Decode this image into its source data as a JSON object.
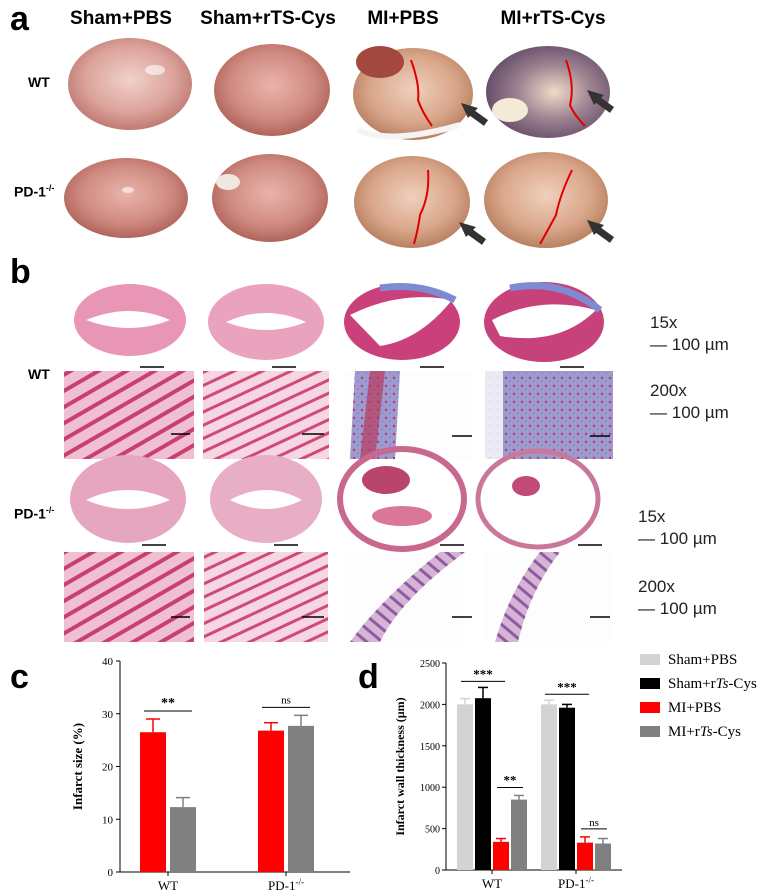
{
  "panel_labels": {
    "a": "a",
    "b": "b",
    "c": "c",
    "d": "d"
  },
  "groups": [
    "Sham+PBS",
    "Sham+rTS-Cys",
    "MI+PBS",
    "MI+rTS-Cys"
  ],
  "genotypes": [
    "WT",
    "PD-1-/-"
  ],
  "magnifications": {
    "low": "15x",
    "high": "200x",
    "scale_bar": "100 µm"
  },
  "colors": {
    "sham_pbs": "#d3d3d3",
    "sham_rts": "#000000",
    "mi_pbs": "#ff0000",
    "mi_rts": "#808080",
    "arrow": "#333333",
    "infarct_line": "#e00000"
  },
  "chart_data": [
    {
      "type": "bar",
      "panel": "c",
      "ylabel": "Infarct size (%)",
      "ylim": [
        0,
        40
      ],
      "yticks": [
        0,
        10,
        20,
        30,
        40
      ],
      "categories": [
        "WT",
        "PD-1-/-"
      ],
      "series": [
        {
          "name": "MI+PBS",
          "color": "#ff0000",
          "values": [
            26.5,
            26.8
          ],
          "errors": [
            2.5,
            1.5
          ]
        },
        {
          "name": "MI+rTS-Cys",
          "color": "#808080",
          "values": [
            12.3,
            27.7
          ],
          "errors": [
            1.8,
            2.0
          ]
        }
      ],
      "annotations": [
        {
          "category": "WT",
          "text": "**"
        },
        {
          "category": "PD-1-/-",
          "text": "ns"
        }
      ],
      "grid": false
    },
    {
      "type": "bar",
      "panel": "d",
      "ylabel": "Infarct wall thickness (µm)",
      "ylim": [
        0,
        2500
      ],
      "yticks": [
        0,
        500,
        1000,
        1500,
        2000,
        2500
      ],
      "categories": [
        "WT",
        "PD-1-/-"
      ],
      "series": [
        {
          "name": "Sham+PBS",
          "color": "#d3d3d3",
          "values": [
            2000,
            2000
          ],
          "errors": [
            70,
            50
          ]
        },
        {
          "name": "Sham+rTs-Cys",
          "color": "#000000",
          "values": [
            2075,
            1960
          ],
          "errors": [
            130,
            40
          ]
        },
        {
          "name": "MI+PBS",
          "color": "#ff0000",
          "values": [
            340,
            330
          ],
          "errors": [
            40,
            70
          ]
        },
        {
          "name": "MI+rTs-Cys",
          "color": "#808080",
          "values": [
            850,
            320
          ],
          "errors": [
            50,
            60
          ]
        }
      ],
      "annotations": [
        {
          "category": "WT",
          "text": "***"
        },
        {
          "category": "WT",
          "text": "**"
        },
        {
          "category": "PD-1-/-",
          "text": "***"
        },
        {
          "category": "PD-1-/-",
          "text": "ns"
        }
      ],
      "legend_position": "right",
      "grid": false
    }
  ]
}
